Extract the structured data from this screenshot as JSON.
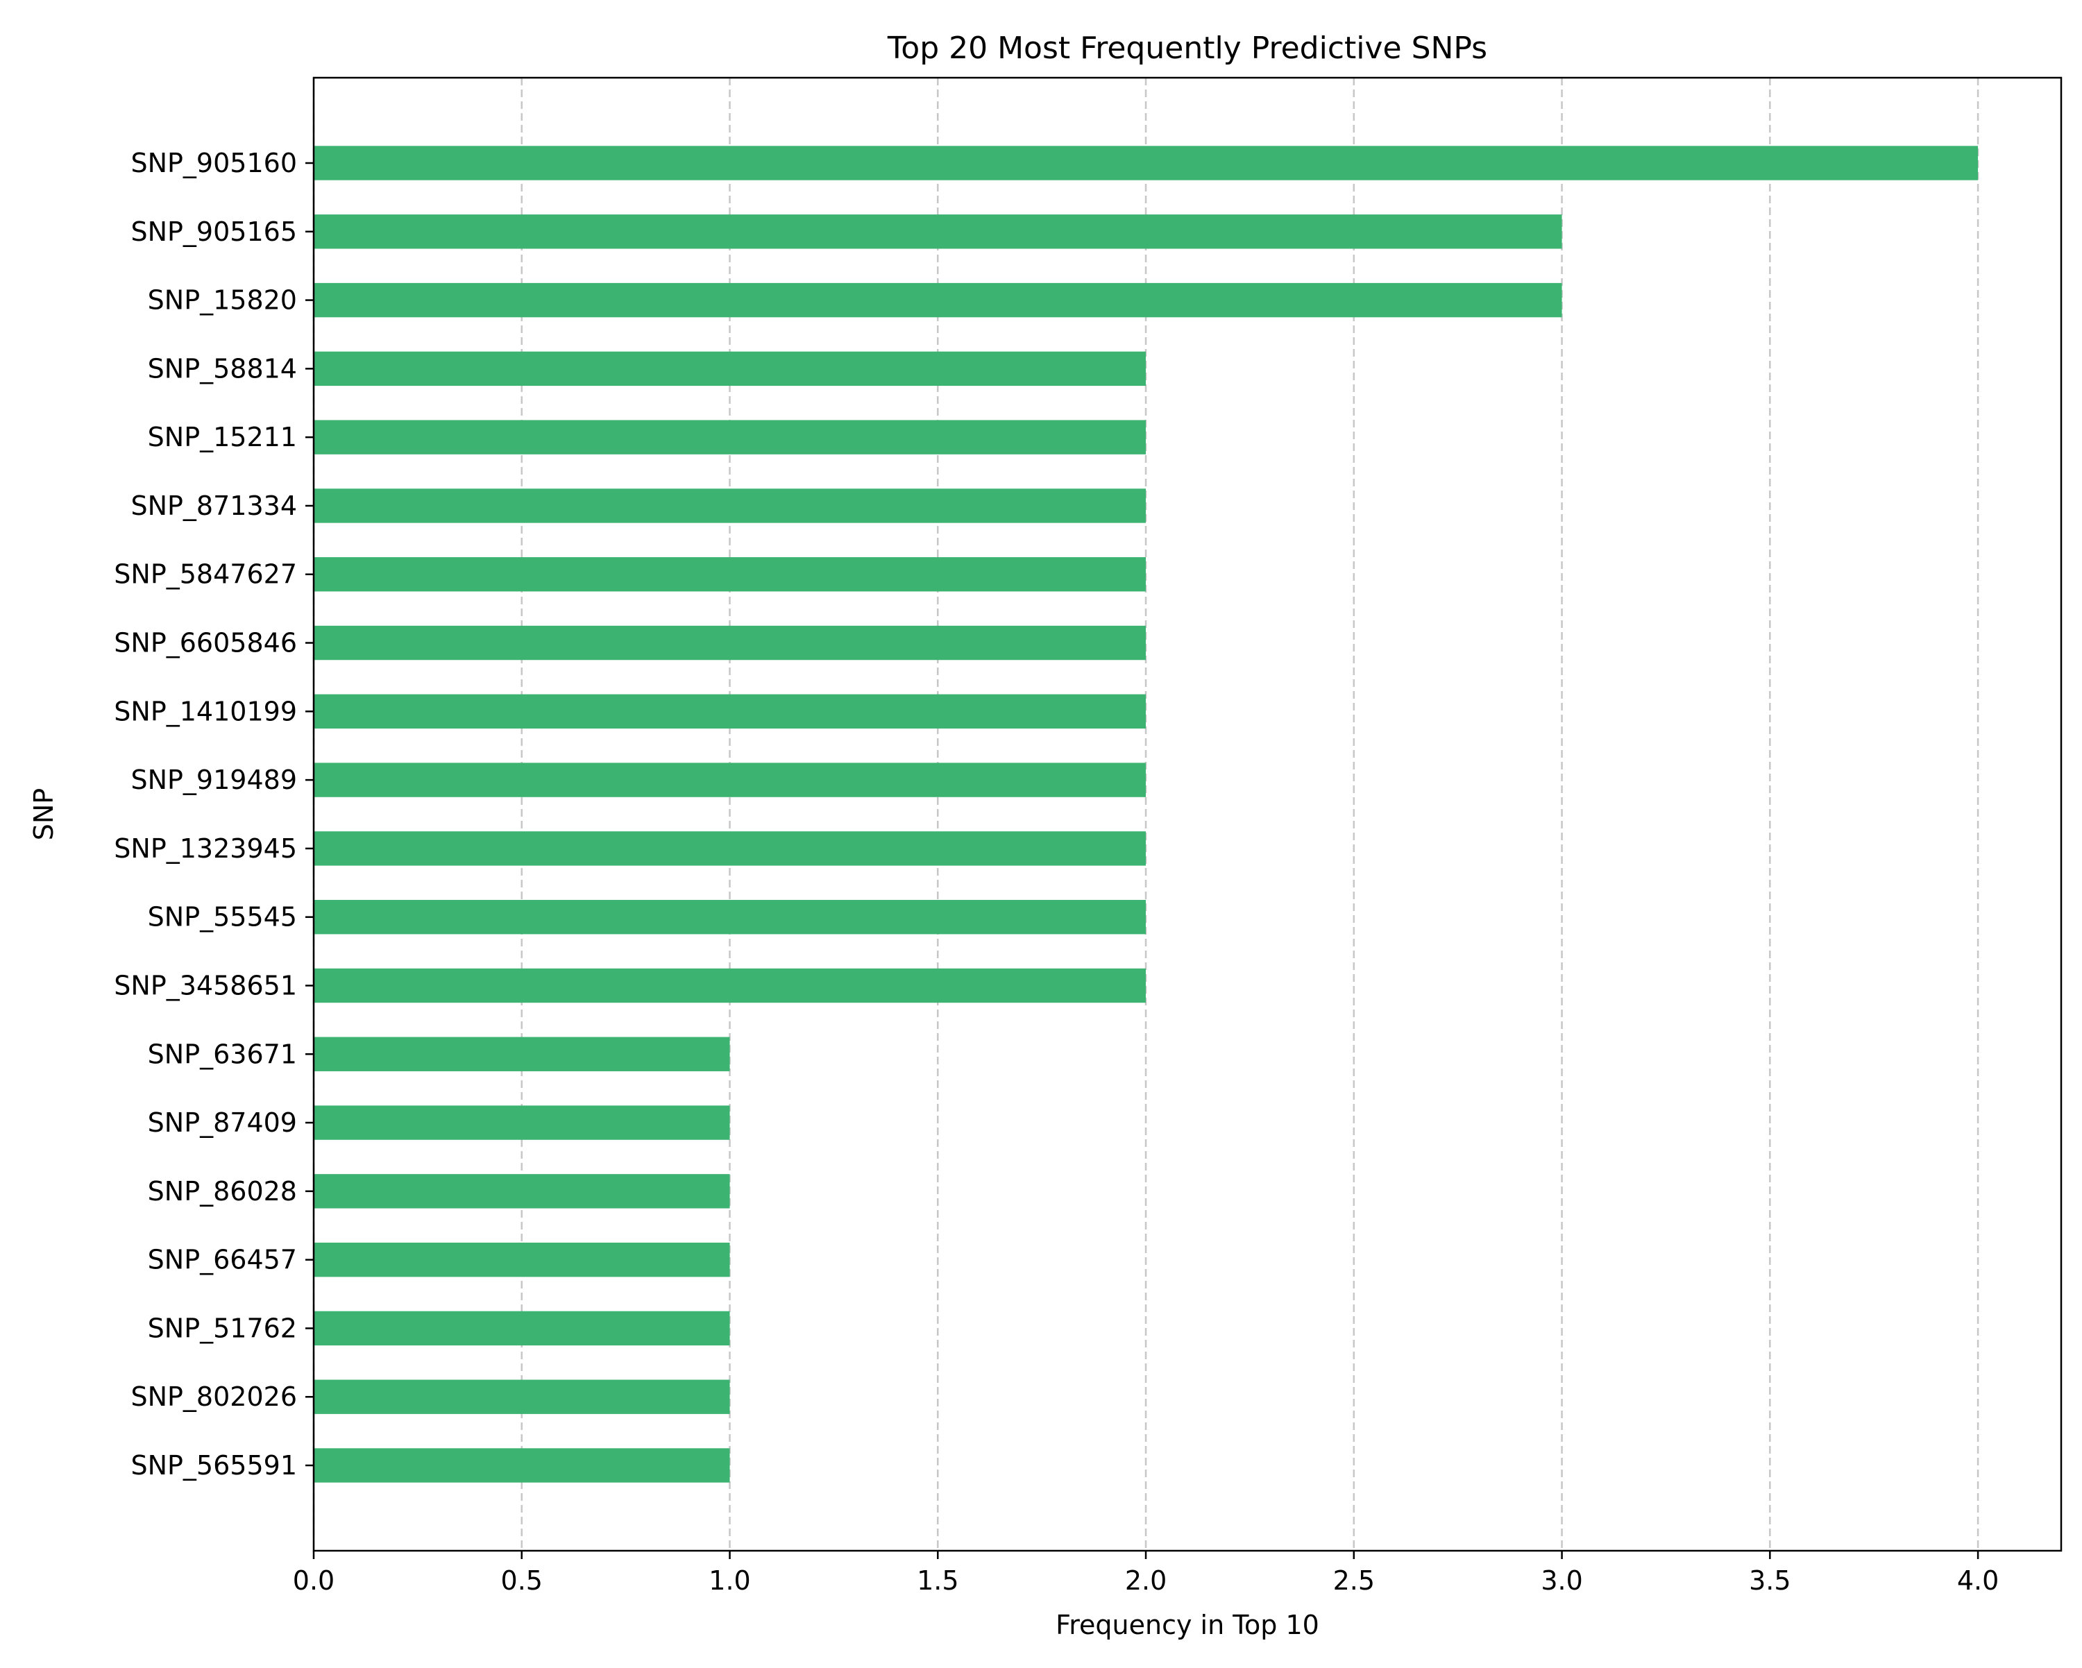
{
  "chart_data": {
    "type": "bar",
    "orientation": "horizontal",
    "title": "Top 20 Most Frequently Predictive SNPs",
    "xlabel": "Frequency in Top 10",
    "ylabel": "SNP",
    "categories": [
      "SNP_905160",
      "SNP_905165",
      "SNP_15820",
      "SNP_58814",
      "SNP_15211",
      "SNP_871334",
      "SNP_5847627",
      "SNP_6605846",
      "SNP_1410199",
      "SNP_919489",
      "SNP_1323945",
      "SNP_55545",
      "SNP_3458651",
      "SNP_63671",
      "SNP_87409",
      "SNP_86028",
      "SNP_66457",
      "SNP_51762",
      "SNP_802026",
      "SNP_565591"
    ],
    "values": [
      4,
      3,
      3,
      2,
      2,
      2,
      2,
      2,
      2,
      2,
      2,
      2,
      2,
      1,
      1,
      1,
      1,
      1,
      1,
      1
    ],
    "xlim": [
      0,
      4.2
    ],
    "xticks": [
      "0.0",
      "0.5",
      "1.0",
      "1.5",
      "2.0",
      "2.5",
      "3.0",
      "3.5",
      "4.0"
    ],
    "grid": "x-axis dashed",
    "bar_color": "#3cb371"
  }
}
